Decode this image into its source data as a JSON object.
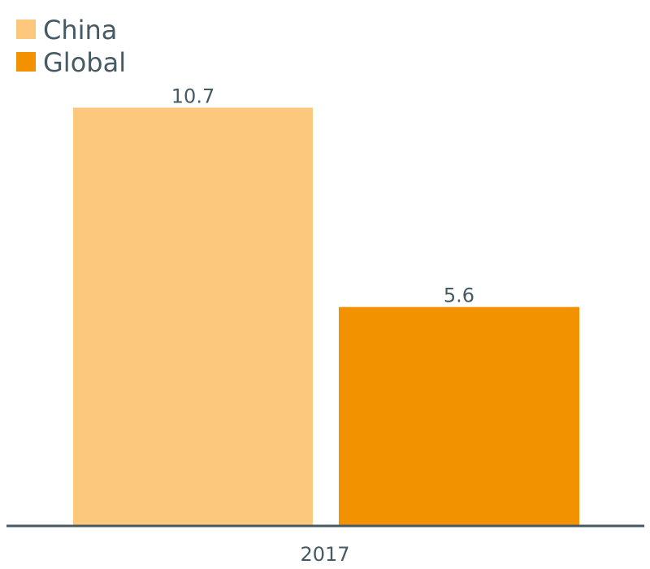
{
  "chart_data": {
    "type": "bar",
    "categories": [
      "2017"
    ],
    "series": [
      {
        "name": "China",
        "values": [
          10.7
        ],
        "color": "#fbc87d"
      },
      {
        "name": "Global",
        "values": [
          5.6
        ],
        "color": "#f29200"
      }
    ],
    "data_labels": [
      "10.7",
      "5.6"
    ],
    "ylim": [
      0,
      11
    ],
    "grid": false,
    "legend": "top-left",
    "axis_color": "#455a64",
    "text_color": "#455a64"
  }
}
